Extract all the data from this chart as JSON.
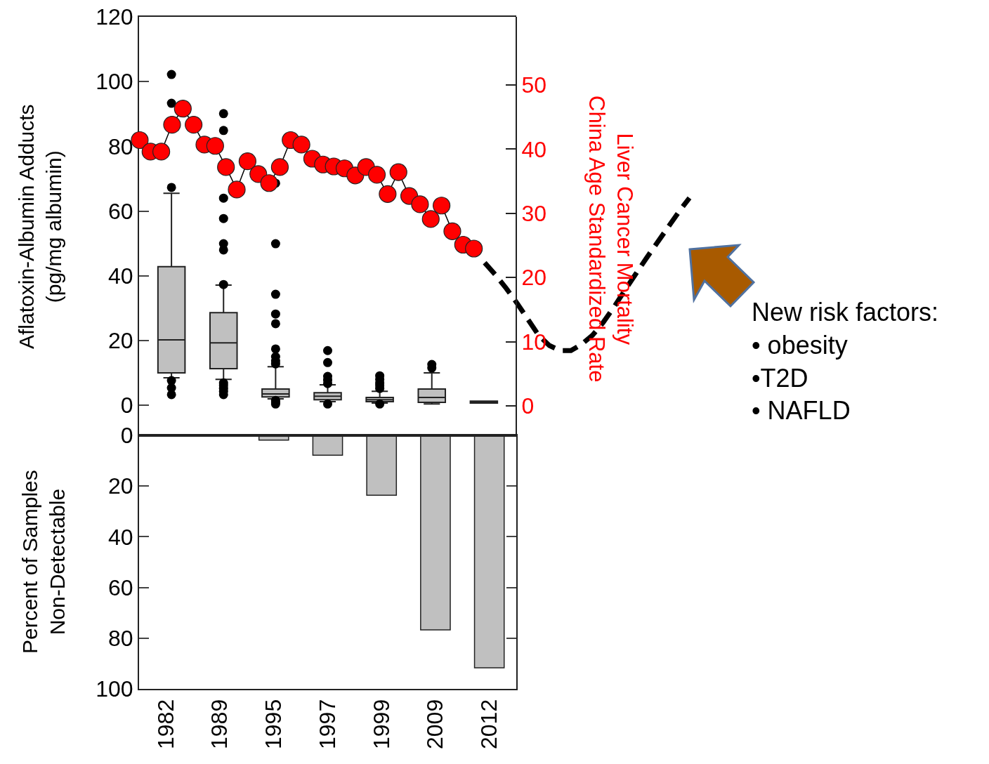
{
  "chart_data": [
    {
      "type": "box",
      "categories": [
        "1982",
        "1989",
        "1995",
        "1997",
        "1999",
        "2009",
        "2012"
      ],
      "color": "#c0c0c0",
      "ylabel": "Aflatoxin-Albumin Adducts\n(pg/mg albumin)",
      "ylim": [
        -9.3,
        120
      ],
      "yticks": [
        0,
        20,
        40,
        60,
        80,
        100,
        120
      ],
      "tick_labels": "y",
      "boxes": [
        {
          "low": 8.5,
          "q1": 10.0,
          "median": 20.2,
          "q3": 42.8,
          "high": 65.5,
          "outliers": [
            102.2,
            93.3,
            67.3,
            7.6,
            5.4,
            3.3
          ]
        },
        {
          "low": 8.0,
          "q1": 11.3,
          "median": 19.3,
          "q3": 28.6,
          "high": 37.1,
          "outliers": [
            90.1,
            84.9,
            64.0,
            57.7,
            49.9,
            48.0,
            37.3,
            6.9,
            6.1,
            5.2,
            4.3,
            3.3
          ]
        },
        {
          "low": 2.0,
          "q1": 2.6,
          "median": 3.5,
          "q3": 5.0,
          "high": 11.9,
          "outliers": [
            68.6,
            49.9,
            34.3,
            28.2,
            25.2,
            17.4,
            15.0,
            13.7,
            12.8,
            1.5,
            0.9,
            0.4
          ]
        },
        {
          "low": 1.1,
          "q1": 1.7,
          "median": 2.8,
          "q3": 3.9,
          "high": 6.3,
          "outliers": [
            16.9,
            13.2,
            8.9,
            7.8,
            6.7,
            0.4
          ]
        },
        {
          "low": 0.7,
          "q1": 1.1,
          "median": 1.7,
          "q3": 2.4,
          "high": 4.3,
          "outliers": [
            9.1,
            8.0,
            6.9,
            6.1,
            5.2,
            0.4
          ]
        },
        {
          "low": 0.4,
          "q1": 0.9,
          "median": 2.4,
          "q3": 5.0,
          "high": 10.0,
          "outliers": [
            12.6,
            11.5
          ]
        },
        {
          "low": 0.7,
          "q1": 0.7,
          "median": 1.0,
          "q3": 1.3,
          "high": 1.3
        }
      ]
    },
    {
      "type": "line",
      "categories": [
        null,
        null,
        null,
        null,
        null,
        null,
        null,
        null,
        null,
        null,
        null,
        null,
        null,
        null,
        null,
        null,
        null,
        null,
        null,
        null,
        null,
        null,
        null,
        null,
        null,
        null,
        null,
        null,
        null,
        null,
        null,
        null,
        null,
        null,
        null,
        null,
        null,
        null,
        null,
        null,
        null,
        null,
        null,
        null,
        null,
        null,
        null,
        null,
        null,
        null,
        null,
        null
      ],
      "marker": "circle",
      "ylabel": "Liver Cancer Mortality\nChina Age Standardized Rate",
      "ylim": [
        -4.6,
        60.6
      ],
      "yticks": [
        0,
        10,
        20,
        30,
        40,
        50
      ],
      "tick_labels": "y",
      "annotations": [
        "New risk factors:\n• obesity\n•T2D\n• NAFLD"
      ],
      "series": [
        {
          "color": "#ff0000",
          "values": [
            41.4,
            39.6,
            39.6,
            43.8,
            46.3,
            43.8,
            40.7,
            40.5,
            37.2,
            33.7,
            38.1,
            36.1,
            34.7,
            37.2,
            41.4,
            40.7,
            38.5,
            37.6,
            37.3,
            37.0,
            35.9,
            37.2,
            36.0,
            33.0,
            36.4,
            32.7,
            31.4,
            29.1,
            31.2,
            27.2,
            25.1,
            24.5,
            null,
            null,
            null,
            null,
            null,
            null,
            null,
            null,
            null,
            null,
            null,
            null,
            null,
            null,
            null,
            null,
            null,
            null,
            null,
            null
          ]
        },
        {
          "color": "#000000",
          "line_style": "dashed",
          "marker": "none",
          "values": [
            null,
            null,
            null,
            null,
            null,
            null,
            null,
            null,
            null,
            null,
            null,
            null,
            null,
            null,
            null,
            null,
            null,
            null,
            null,
            null,
            null,
            null,
            null,
            null,
            null,
            null,
            null,
            null,
            null,
            null,
            null,
            null,
            22.3,
            20.4,
            18.3,
            16.0,
            13.5,
            11.0,
            9.4,
            8.6,
            8.6,
            9.6,
            11.0,
            13.0,
            15.4,
            18.0,
            20.5,
            23.0,
            25.4,
            27.8,
            30.2,
            32.4
          ]
        }
      ]
    },
    {
      "type": "bar",
      "categories": [
        "1982",
        "1989",
        "1995",
        "1997",
        "1999",
        "2009",
        "2012"
      ],
      "values": [
        0,
        0,
        1.9,
        7.8,
        23.6,
        76.7,
        91.7
      ],
      "color": "#c0c0c0",
      "ylabel": "Percent of Samples\nNon-Detectable",
      "ylim": [
        100,
        0
      ],
      "yticks": [
        0,
        20,
        40,
        60,
        80,
        100
      ]
    }
  ]
}
